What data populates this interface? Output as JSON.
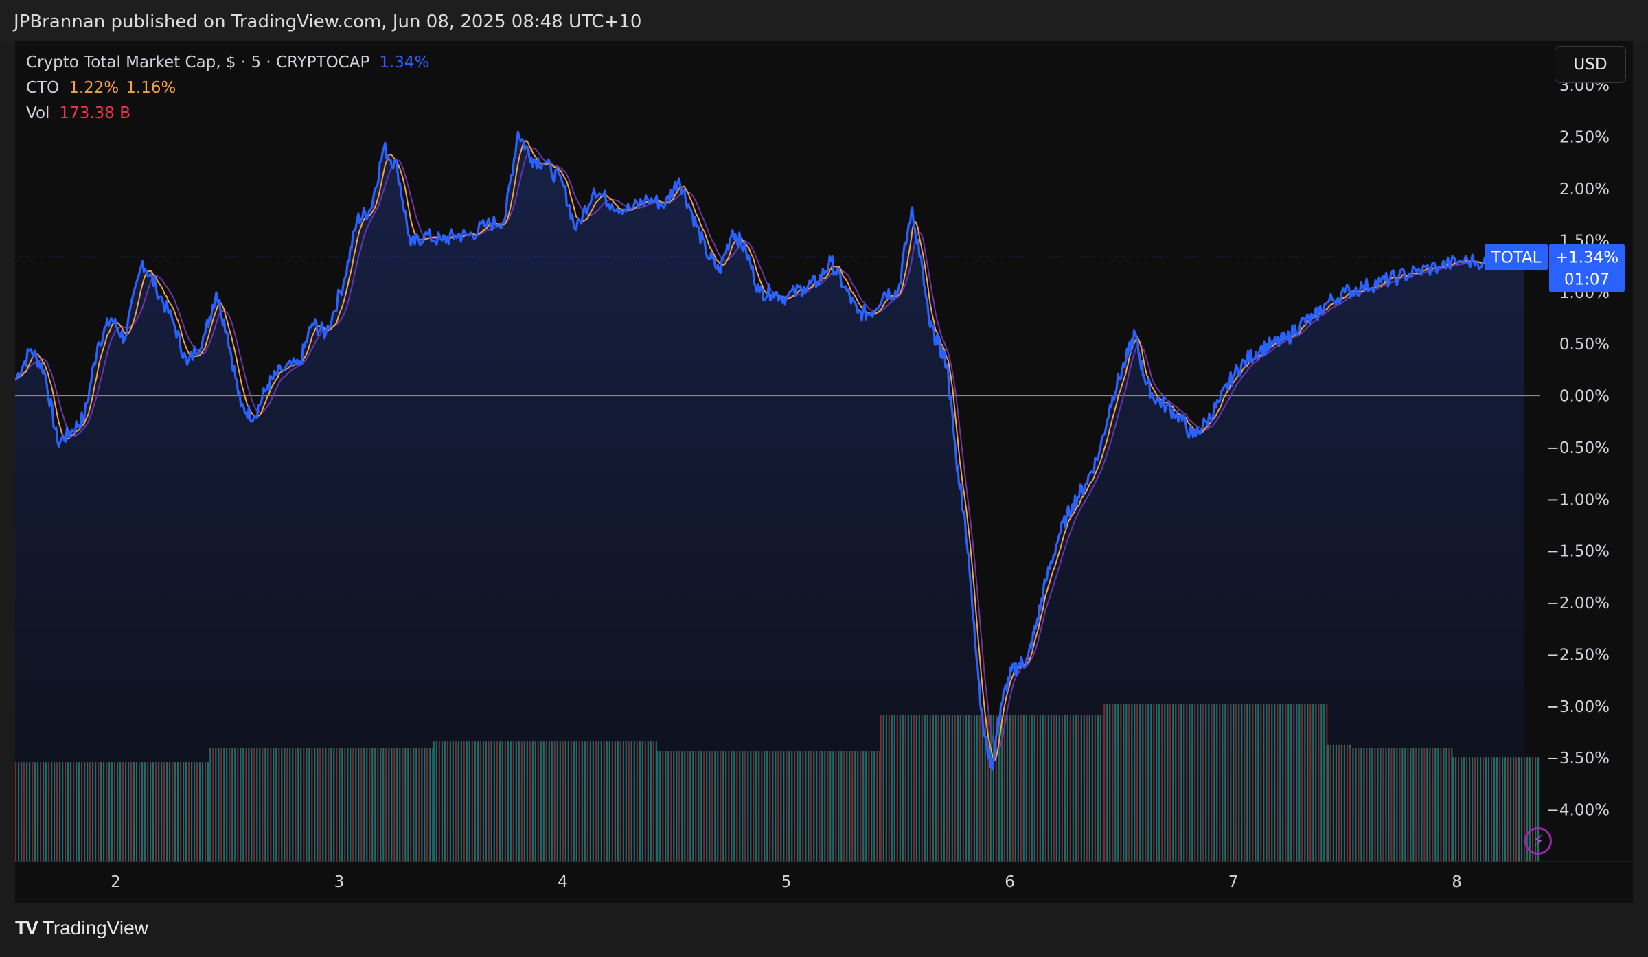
{
  "header": {
    "text": "JPBrannan published on TradingView.com, Jun 08, 2025 08:48 UTC+10"
  },
  "legend": {
    "title": "Crypto Total Market Cap, $ · 5 · CRYPTOCAP",
    "title_change": "1.34%",
    "cto_label": "CTO",
    "cto_v1": "1.22%",
    "cto_v2": "1.16%",
    "vol_label": "Vol",
    "vol_value": "173.38 B"
  },
  "currency_button": "USD",
  "price_tag": {
    "symbol": "TOTAL",
    "value": "+1.34%",
    "countdown": "01:07"
  },
  "footer": {
    "brand": "TradingView"
  },
  "colors": {
    "line": "#2962ff",
    "area_top": "#172146",
    "area_bottom": "#0d0f18",
    "cto_fast": "#f7a23c",
    "cto_slow": "#6a35a6",
    "vol_up": "#1f6b66",
    "vol_down": "#7a2a2e",
    "axis_text": "#d1d4dc",
    "zero_line": "#8a8a8a"
  },
  "chart_data": {
    "type": "line",
    "title": "Crypto Total Market Cap, $ · 5 · CRYPTOCAP",
    "y_unit": "% change",
    "ylim": [
      -4.5,
      3.3
    ],
    "x_ticks": [
      "2",
      "3",
      "4",
      "5",
      "6",
      "7",
      "8"
    ],
    "y_ticks": [
      "3.00%",
      "2.50%",
      "2.00%",
      "1.50%",
      "1.00%",
      "0.50%",
      "0.00%",
      "−0.50%",
      "−1.00%",
      "−1.50%",
      "−2.00%",
      "−2.50%",
      "−3.00%",
      "−3.50%",
      "−4.00%"
    ],
    "y_tick_values": [
      3,
      2.5,
      2,
      1.5,
      1,
      0.5,
      0,
      -0.5,
      -1,
      -1.5,
      -2,
      -2.5,
      -3,
      -3.5,
      -4
    ],
    "x_range": [
      1.55,
      8.37
    ],
    "series": [
      {
        "name": "TOTAL",
        "points": [
          [
            1.55,
            0.15
          ],
          [
            1.62,
            0.45
          ],
          [
            1.68,
            0.25
          ],
          [
            1.74,
            -0.45
          ],
          [
            1.8,
            -0.35
          ],
          [
            1.86,
            -0.2
          ],
          [
            1.92,
            0.5
          ],
          [
            1.98,
            0.75
          ],
          [
            2.04,
            0.55
          ],
          [
            2.12,
            1.3
          ],
          [
            2.18,
            1.05
          ],
          [
            2.26,
            0.7
          ],
          [
            2.32,
            0.3
          ],
          [
            2.4,
            0.6
          ],
          [
            2.45,
            1.0
          ],
          [
            2.5,
            0.6
          ],
          [
            2.56,
            -0.1
          ],
          [
            2.62,
            -0.2
          ],
          [
            2.68,
            0.1
          ],
          [
            2.74,
            0.25
          ],
          [
            2.82,
            0.3
          ],
          [
            2.88,
            0.7
          ],
          [
            2.94,
            0.6
          ],
          [
            3.02,
            1.1
          ],
          [
            3.08,
            1.7
          ],
          [
            3.14,
            1.8
          ],
          [
            3.2,
            2.4
          ],
          [
            3.26,
            2.2
          ],
          [
            3.32,
            1.45
          ],
          [
            3.38,
            1.55
          ],
          [
            3.46,
            1.5
          ],
          [
            3.52,
            1.55
          ],
          [
            3.58,
            1.55
          ],
          [
            3.66,
            1.65
          ],
          [
            3.74,
            1.7
          ],
          [
            3.8,
            2.55
          ],
          [
            3.86,
            2.3
          ],
          [
            3.92,
            2.25
          ],
          [
            4.0,
            2.05
          ],
          [
            4.06,
            1.6
          ],
          [
            4.14,
            2.0
          ],
          [
            4.22,
            1.85
          ],
          [
            4.3,
            1.8
          ],
          [
            4.38,
            1.9
          ],
          [
            4.46,
            1.85
          ],
          [
            4.52,
            2.1
          ],
          [
            4.58,
            1.75
          ],
          [
            4.64,
            1.4
          ],
          [
            4.7,
            1.2
          ],
          [
            4.76,
            1.6
          ],
          [
            4.82,
            1.4
          ],
          [
            4.88,
            1.0
          ],
          [
            4.94,
            1.0
          ],
          [
            5.0,
            0.95
          ],
          [
            5.08,
            1.05
          ],
          [
            5.14,
            1.1
          ],
          [
            5.2,
            1.3
          ],
          [
            5.26,
            1.05
          ],
          [
            5.32,
            0.8
          ],
          [
            5.38,
            0.8
          ],
          [
            5.44,
            1.0
          ],
          [
            5.5,
            1.0
          ],
          [
            5.56,
            1.8
          ],
          [
            5.6,
            1.35
          ],
          [
            5.64,
            0.7
          ],
          [
            5.68,
            0.5
          ],
          [
            5.72,
            0.3
          ],
          [
            5.76,
            -0.6
          ],
          [
            5.8,
            -1.2
          ],
          [
            5.84,
            -2.2
          ],
          [
            5.88,
            -3.2
          ],
          [
            5.92,
            -3.6
          ],
          [
            5.96,
            -3.0
          ],
          [
            6.0,
            -2.7
          ],
          [
            6.04,
            -2.6
          ],
          [
            6.08,
            -2.55
          ],
          [
            6.12,
            -2.2
          ],
          [
            6.16,
            -1.8
          ],
          [
            6.22,
            -1.35
          ],
          [
            6.28,
            -1.05
          ],
          [
            6.34,
            -0.85
          ],
          [
            6.4,
            -0.55
          ],
          [
            6.46,
            0.0
          ],
          [
            6.52,
            0.35
          ],
          [
            6.56,
            0.6
          ],
          [
            6.6,
            0.2
          ],
          [
            6.64,
            0.0
          ],
          [
            6.7,
            -0.1
          ],
          [
            6.76,
            -0.2
          ],
          [
            6.82,
            -0.4
          ],
          [
            6.88,
            -0.25
          ],
          [
            6.94,
            -0.05
          ],
          [
            7.0,
            0.2
          ],
          [
            7.06,
            0.35
          ],
          [
            7.12,
            0.45
          ],
          [
            7.18,
            0.5
          ],
          [
            7.24,
            0.55
          ],
          [
            7.3,
            0.7
          ],
          [
            7.36,
            0.75
          ],
          [
            7.42,
            0.9
          ],
          [
            7.5,
            1.0
          ],
          [
            7.58,
            1.05
          ],
          [
            7.66,
            1.1
          ],
          [
            7.74,
            1.15
          ],
          [
            7.82,
            1.2
          ],
          [
            7.92,
            1.25
          ],
          [
            8.02,
            1.3
          ],
          [
            8.12,
            1.3
          ],
          [
            8.22,
            1.33
          ],
          [
            8.3,
            1.34
          ]
        ]
      }
    ],
    "volume_blocks": [
      {
        "start": 1.55,
        "end": 2.42,
        "height": 0.63
      },
      {
        "start": 2.42,
        "end": 3.42,
        "height": 0.72
      },
      {
        "start": 3.42,
        "end": 4.42,
        "height": 0.76
      },
      {
        "start": 4.42,
        "end": 5.42,
        "height": 0.7
      },
      {
        "start": 5.42,
        "end": 6.42,
        "height": 0.93
      },
      {
        "start": 6.42,
        "end": 7.42,
        "height": 1.0
      },
      {
        "start": 7.42,
        "end": 7.52,
        "height": 0.74
      },
      {
        "start": 7.52,
        "end": 7.98,
        "height": 0.72
      },
      {
        "start": 7.98,
        "end": 8.37,
        "height": 0.66
      }
    ],
    "last_value": 1.34,
    "grid": false
  }
}
